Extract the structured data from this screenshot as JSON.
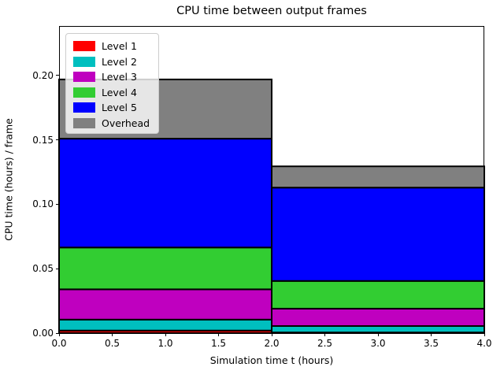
{
  "figure": {
    "background": "#ffffff",
    "axes_edge_color": "#000000"
  },
  "chart_data": {
    "type": "bar",
    "stacked": true,
    "title": "CPU time between output frames",
    "xlabel": "Simulation time t (hours)",
    "ylabel": "CPU time (hours) / frame",
    "xlim": [
      0,
      4
    ],
    "ylim": [
      0,
      0.2385
    ],
    "xticks": [
      0.0,
      0.5,
      1.0,
      1.5,
      2.0,
      2.5,
      3.0,
      3.5,
      4.0
    ],
    "xtick_labels": [
      "0.0",
      "0.5",
      "1.0",
      "1.5",
      "2.0",
      "2.5",
      "3.0",
      "3.5",
      "4.0"
    ],
    "yticks": [
      0.0,
      0.05,
      0.1,
      0.15,
      0.2
    ],
    "ytick_labels": [
      "0.00",
      "0.05",
      "0.10",
      "0.15",
      "0.20"
    ],
    "grid": false,
    "bars": [
      {
        "x_start": 0,
        "x_end": 2
      },
      {
        "x_start": 2,
        "x_end": 4
      }
    ],
    "series": [
      {
        "name": "Level 1",
        "color": "#ff0000",
        "values": [
          0.002,
          0.0005
        ]
      },
      {
        "name": "Level 2",
        "color": "#00bfbf",
        "values": [
          0.0085,
          0.005
        ]
      },
      {
        "name": "Level 3",
        "color": "#bf00bf",
        "values": [
          0.0235,
          0.0135
        ]
      },
      {
        "name": "Level 4",
        "color": "#32cd32",
        "values": [
          0.0325,
          0.0215
        ]
      },
      {
        "name": "Level 5",
        "color": "#0000ff",
        "values": [
          0.0845,
          0.0725
        ]
      },
      {
        "name": "Overhead",
        "color": "#808080",
        "values": [
          0.046,
          0.0165
        ]
      }
    ],
    "stack_totals": [
      0.197,
      0.1295
    ],
    "bar_edge_color": "#000000",
    "bar_edge_width": 2,
    "legend": {
      "position": "upper-left",
      "labels": [
        "Level 1",
        "Level 2",
        "Level 3",
        "Level 4",
        "Level 5",
        "Overhead"
      ]
    }
  }
}
